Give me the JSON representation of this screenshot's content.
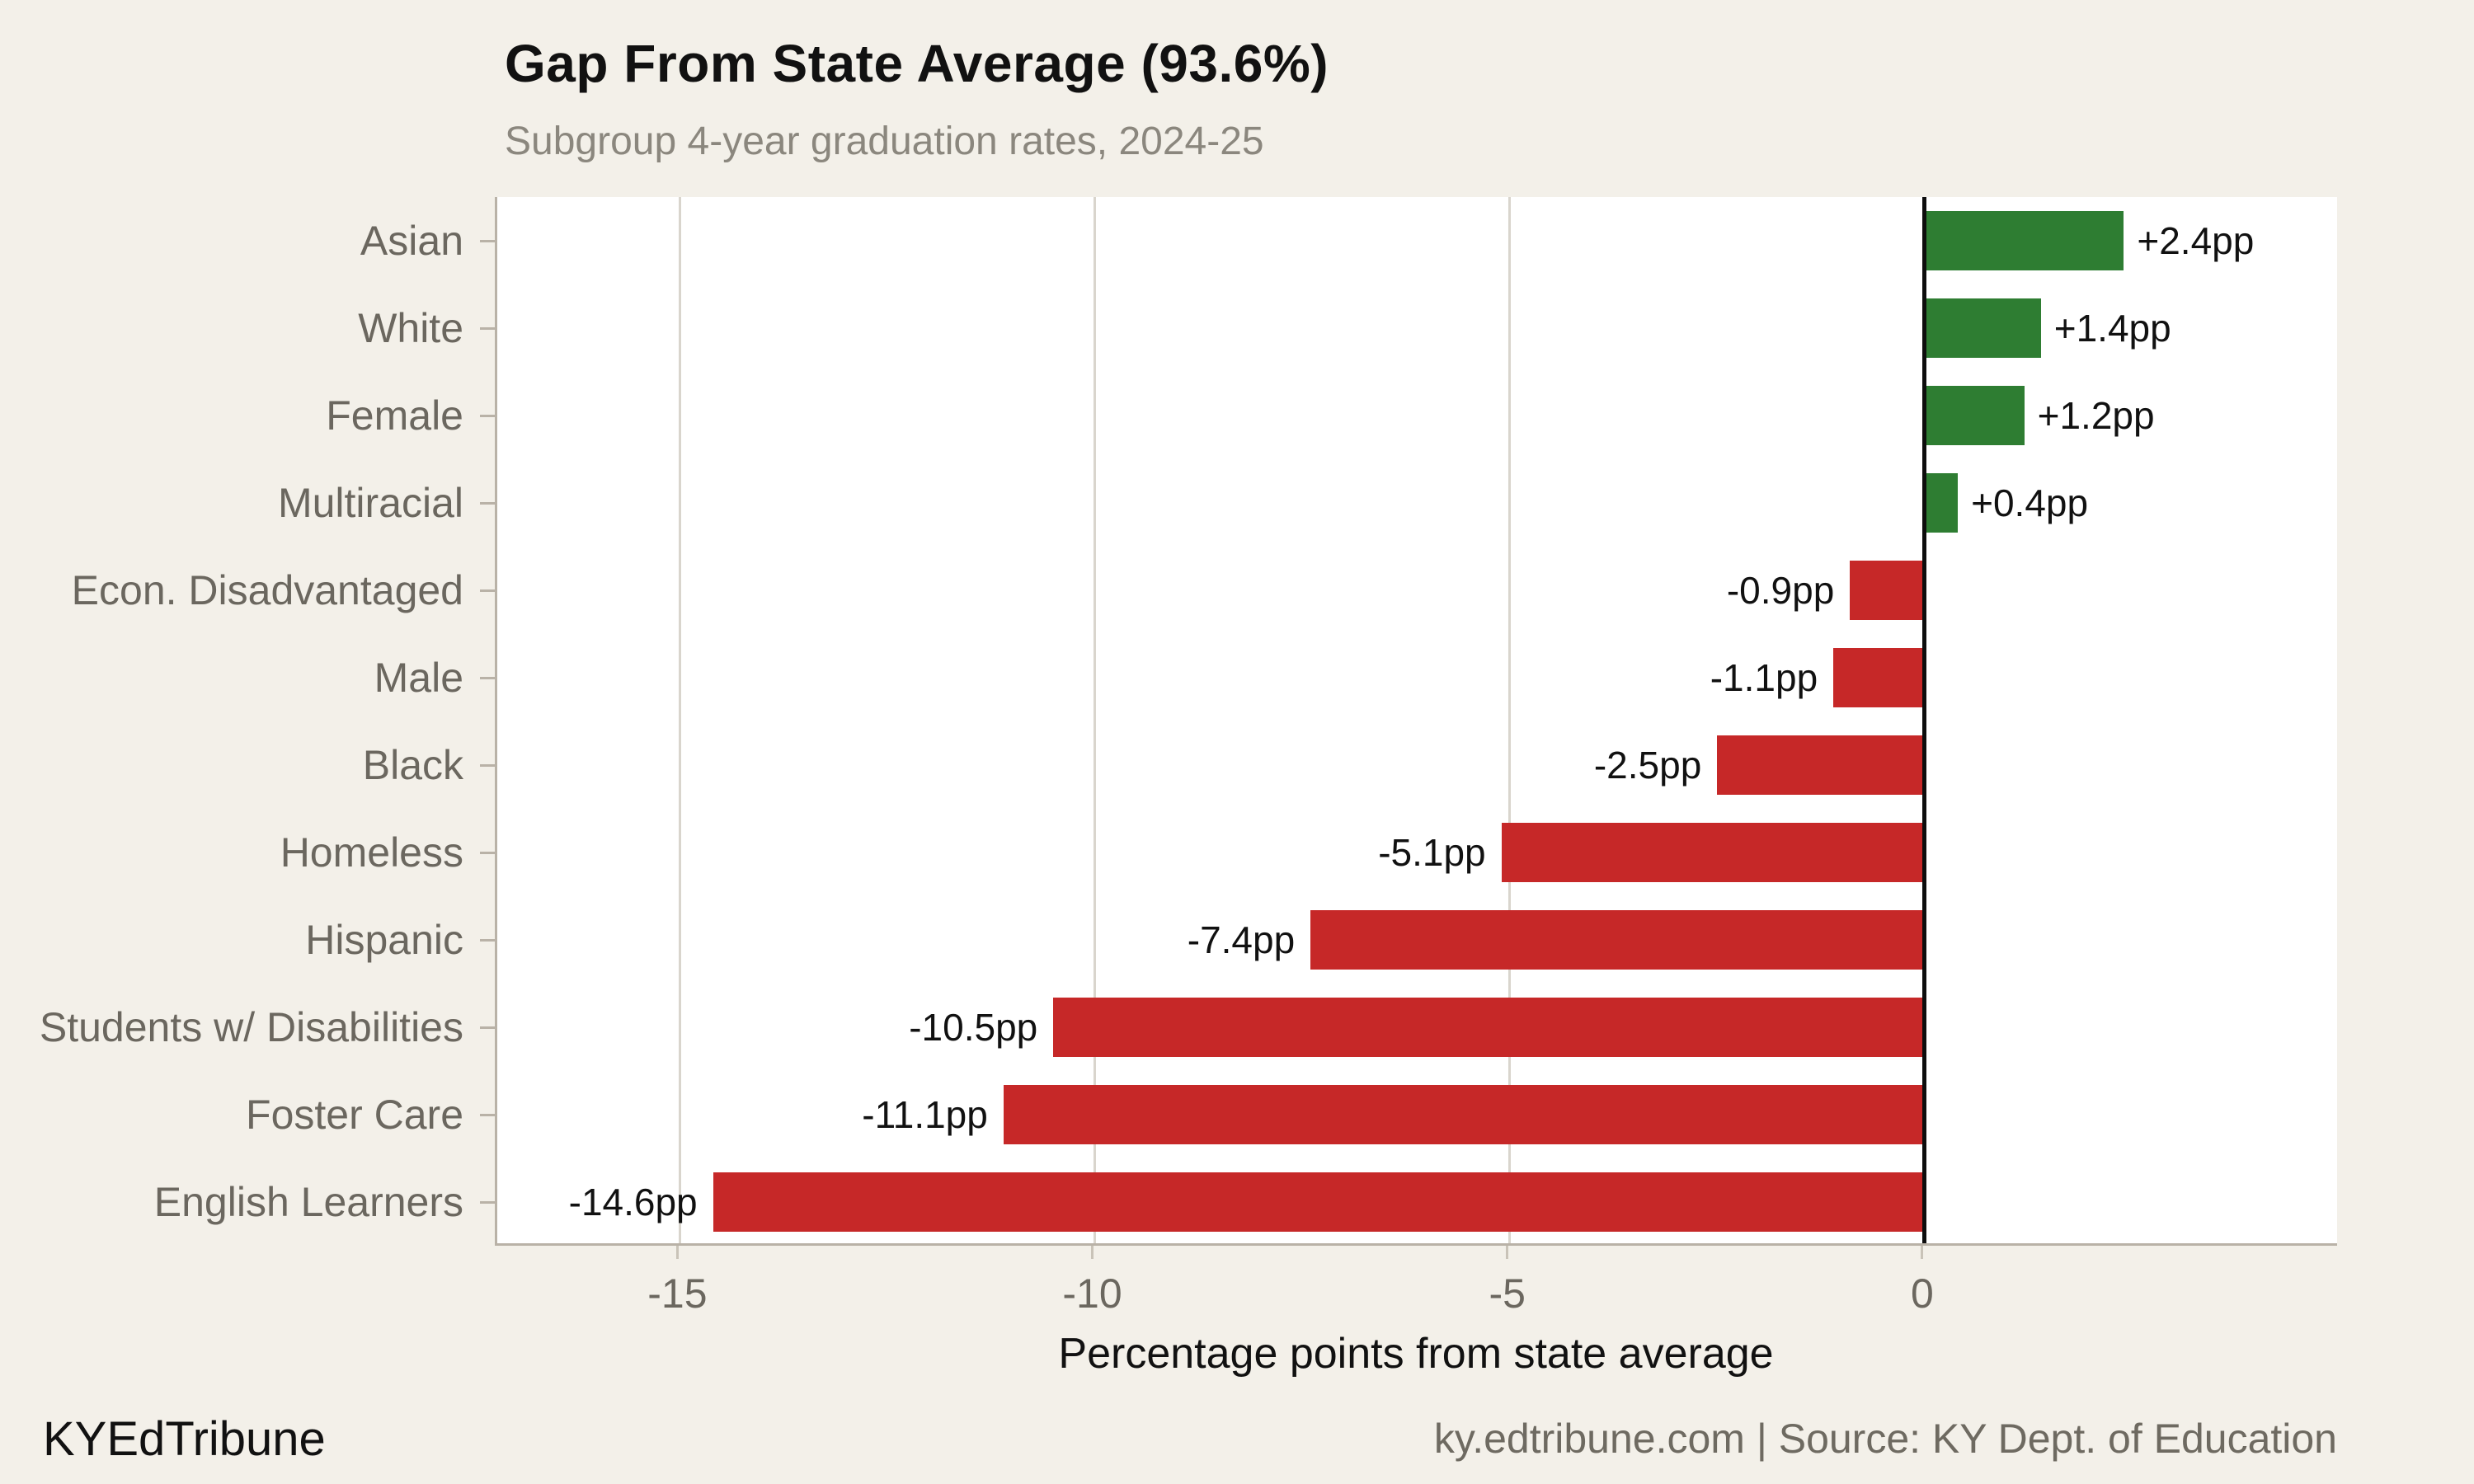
{
  "header": {
    "title": "Gap From State Average (93.6%)",
    "subtitle": "Subgroup 4-year graduation rates, 2024-25"
  },
  "footer": {
    "brand": "KYEdTribune",
    "source": "ky.edtribune.com | Source: KY Dept. of Education"
  },
  "colors": {
    "background": "#f3f0e9",
    "plot_background": "#ffffff",
    "positive_bar": "#2e7d32",
    "negative_bar": "#c62828",
    "gridline": "#d9d5cd",
    "spine": "#b9b2a7",
    "zero_line": "#0d0d0d",
    "axis_text": "#6b675f",
    "subtitle_text": "#8b877e",
    "value_text": "#111111"
  },
  "chart_data": {
    "type": "bar",
    "orientation": "horizontal",
    "title": "Gap From State Average (93.6%)",
    "subtitle": "Subgroup 4-year graduation rates, 2024-25",
    "xlabel": "Percentage points from state average",
    "state_average": "93.6%",
    "categories": [
      "Asian",
      "White",
      "Female",
      "Multiracial",
      "Econ. Disadvantaged",
      "Male",
      "Black",
      "Homeless",
      "Hispanic",
      "Students w/ Disabilities",
      "Foster Care",
      "English Learners"
    ],
    "values": [
      2.4,
      1.4,
      1.2,
      0.4,
      -0.9,
      -1.1,
      -2.5,
      -5.1,
      -7.4,
      -10.5,
      -11.1,
      -14.6
    ],
    "value_labels": [
      "+2.4pp",
      "+1.4pp",
      "+1.2pp",
      "+0.4pp",
      "-0.9pp",
      "-1.1pp",
      "-2.5pp",
      "-5.1pp",
      "-7.4pp",
      "-10.5pp",
      "-11.1pp",
      "-14.6pp"
    ],
    "xticks": [
      -15,
      -10,
      -5,
      0
    ],
    "xlim": [
      -17.2,
      5.0
    ],
    "grid": "vertical-at-ticks-behind-bars",
    "zero_line": true,
    "legend": "none"
  }
}
